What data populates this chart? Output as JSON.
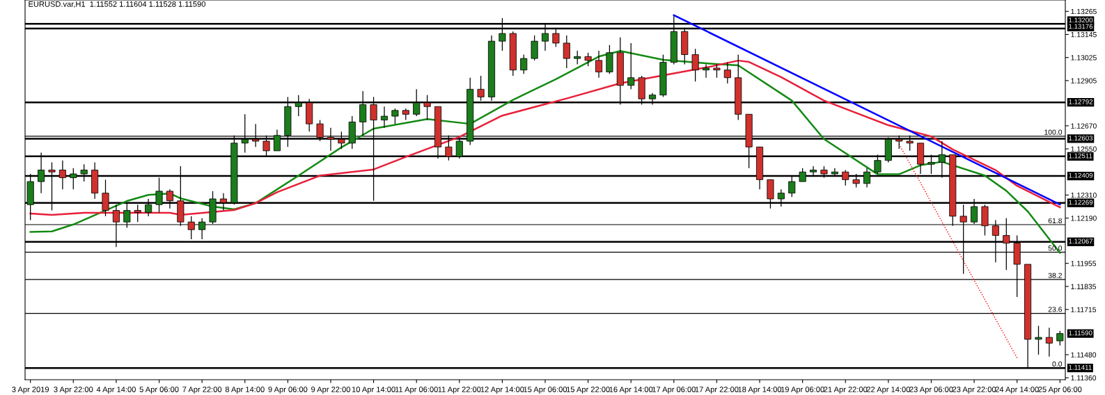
{
  "chart_data": {
    "type": "candlestick",
    "title": "EURUSD.var,H1  1.11552 1.11604 1.11528 1.11590",
    "categories": [
      "3 Apr 2019",
      null,
      null,
      null,
      "3 Apr 22:00",
      null,
      null,
      null,
      "4 Apr 14:00",
      null,
      null,
      null,
      "5 Apr 06:00",
      null,
      null,
      null,
      "7 Apr 22:00",
      null,
      null,
      null,
      "8 Apr 14:00",
      null,
      null,
      null,
      "9 Apr 06:00",
      null,
      null,
      null,
      "9 Apr 22:00",
      null,
      null,
      null,
      "10 Apr 14:00",
      null,
      null,
      null,
      "11 Apr 06:00",
      null,
      null,
      null,
      "11 Apr 22:00",
      null,
      null,
      null,
      "12 Apr 14:00",
      null,
      null,
      null,
      "15 Apr 06:00",
      null,
      null,
      null,
      "15 Apr 22:00",
      null,
      null,
      null,
      "16 Apr 14:00",
      null,
      null,
      null,
      "17 Apr 06:00",
      null,
      null,
      null,
      "17 Apr 22:00",
      null,
      null,
      null,
      "18 Apr 14:00",
      null,
      null,
      null,
      "19 Apr 06:00",
      null,
      null,
      null,
      "21 Apr 22:00",
      null,
      null,
      null,
      "22 Apr 14:00",
      null,
      null,
      null,
      "23 Apr 06:00",
      null,
      null,
      null,
      "23 Apr 22:00",
      null,
      null,
      null,
      "24 Apr 14:00",
      null,
      null,
      null,
      "25 Apr 06:00"
    ],
    "ohlc": [
      [
        1.1226,
        1.1242,
        1.1218,
        1.1238
      ],
      [
        1.1238,
        1.1253,
        1.1232,
        1.1244
      ],
      [
        1.1244,
        1.1248,
        1.1223,
        1.1243
      ],
      [
        1.1244,
        1.1249,
        1.1234,
        1.124
      ],
      [
        1.124,
        1.1245,
        1.1234,
        1.1242
      ],
      [
        1.1242,
        1.1247,
        1.1238,
        1.1244
      ],
      [
        1.1244,
        1.1248,
        1.1229,
        1.1232
      ],
      [
        1.1232,
        1.1239,
        1.122,
        1.1223
      ],
      [
        1.1223,
        1.1226,
        1.1204,
        1.1217
      ],
      [
        1.1217,
        1.1227,
        1.1214,
        1.1223
      ],
      [
        1.1223,
        1.1226,
        1.1217,
        1.1222
      ],
      [
        1.1222,
        1.1229,
        1.122,
        1.1226
      ],
      [
        1.1226,
        1.124,
        1.1222,
        1.1233
      ],
      [
        1.1233,
        1.1234,
        1.1224,
        1.1228
      ],
      [
        1.1228,
        1.1246,
        1.1215,
        1.1217
      ],
      [
        1.1217,
        1.122,
        1.1208,
        1.1213
      ],
      [
        1.1213,
        1.1219,
        1.1208,
        1.1217
      ],
      [
        1.1217,
        1.1233,
        1.1216,
        1.1229
      ],
      [
        1.1229,
        1.1232,
        1.1223,
        1.1227
      ],
      [
        1.1227,
        1.1262,
        1.1226,
        1.1258
      ],
      [
        1.1258,
        1.1273,
        1.1253,
        1.126
      ],
      [
        1.126,
        1.1268,
        1.1256,
        1.1259
      ],
      [
        1.1259,
        1.1262,
        1.1251,
        1.1254
      ],
      [
        1.1254,
        1.1265,
        1.1254,
        1.1262
      ],
      [
        1.1262,
        1.1282,
        1.1256,
        1.1277
      ],
      [
        1.1277,
        1.1283,
        1.1272,
        1.1279
      ],
      [
        1.1279,
        1.1281,
        1.1264,
        1.1268
      ],
      [
        1.1268,
        1.127,
        1.1259,
        1.1261
      ],
      [
        1.1261,
        1.1266,
        1.1254,
        1.126
      ],
      [
        1.126,
        1.1264,
        1.1255,
        1.1258
      ],
      [
        1.1258,
        1.1272,
        1.1255,
        1.1269
      ],
      [
        1.1269,
        1.1285,
        1.1262,
        1.1278
      ],
      [
        1.1278,
        1.1282,
        1.1228,
        1.127
      ],
      [
        1.127,
        1.1277,
        1.1266,
        1.1272
      ],
      [
        1.1272,
        1.1276,
        1.1268,
        1.1275
      ],
      [
        1.1275,
        1.1276,
        1.127,
        1.1273
      ],
      [
        1.1273,
        1.1286,
        1.1272,
        1.1279
      ],
      [
        1.1279,
        1.1283,
        1.127,
        1.1277
      ],
      [
        1.1277,
        1.1277,
        1.125,
        1.1256
      ],
      [
        1.1256,
        1.1262,
        1.1249,
        1.1251
      ],
      [
        1.1251,
        1.126,
        1.125,
        1.1259
      ],
      [
        1.1259,
        1.1292,
        1.1257,
        1.1286
      ],
      [
        1.1286,
        1.1293,
        1.128,
        1.1282
      ],
      [
        1.1282,
        1.1314,
        1.128,
        1.1311
      ],
      [
        1.1311,
        1.1323,
        1.1306,
        1.1315
      ],
      [
        1.1315,
        1.1316,
        1.1293,
        1.1296
      ],
      [
        1.1296,
        1.1304,
        1.1294,
        1.1302
      ],
      [
        1.1302,
        1.1314,
        1.1301,
        1.1311
      ],
      [
        1.1311,
        1.132,
        1.1306,
        1.1315
      ],
      [
        1.1315,
        1.1318,
        1.1308,
        1.131
      ],
      [
        1.131,
        1.1314,
        1.1297,
        1.1302
      ],
      [
        1.1302,
        1.1306,
        1.1299,
        1.1303
      ],
      [
        1.1303,
        1.1305,
        1.1298,
        1.1301
      ],
      [
        1.1301,
        1.1306,
        1.1292,
        1.1295
      ],
      [
        1.1295,
        1.1309,
        1.1294,
        1.1305
      ],
      [
        1.1305,
        1.1313,
        1.1278,
        1.1288
      ],
      [
        1.1288,
        1.131,
        1.1286,
        1.1292
      ],
      [
        1.1292,
        1.1293,
        1.1278,
        1.1281
      ],
      [
        1.1281,
        1.1284,
        1.1278,
        1.1283
      ],
      [
        1.1283,
        1.1304,
        1.1282,
        1.13
      ],
      [
        1.13,
        1.1324,
        1.1299,
        1.1316
      ],
      [
        1.1316,
        1.1318,
        1.1299,
        1.1304
      ],
      [
        1.1304,
        1.1307,
        1.129,
        1.1296
      ],
      [
        1.1296,
        1.1299,
        1.1292,
        1.1297
      ],
      [
        1.1297,
        1.1299,
        1.1292,
        1.1296
      ],
      [
        1.1296,
        1.13,
        1.1289,
        1.1292
      ],
      [
        1.1292,
        1.1304,
        1.127,
        1.1273
      ],
      [
        1.1273,
        1.1273,
        1.1245,
        1.1256
      ],
      [
        1.1256,
        1.1256,
        1.1234,
        1.1239
      ],
      [
        1.1239,
        1.1239,
        1.1224,
        1.1229
      ],
      [
        1.1229,
        1.1234,
        1.1225,
        1.1232
      ],
      [
        1.1232,
        1.1241,
        1.123,
        1.1238
      ],
      [
        1.1238,
        1.1245,
        1.1238,
        1.1243
      ],
      [
        1.1243,
        1.1246,
        1.1241,
        1.1244
      ],
      [
        1.1244,
        1.1246,
        1.124,
        1.1242
      ],
      [
        1.1242,
        1.1245,
        1.1241,
        1.1243
      ],
      [
        1.1243,
        1.1244,
        1.1236,
        1.1239
      ],
      [
        1.1239,
        1.1242,
        1.1235,
        1.1237
      ],
      [
        1.1237,
        1.1245,
        1.1235,
        1.1243
      ],
      [
        1.1243,
        1.1252,
        1.1242,
        1.1249
      ],
      [
        1.1249,
        1.1261,
        1.1248,
        1.126
      ],
      [
        1.126,
        1.1262,
        1.1255,
        1.1259
      ],
      [
        1.1259,
        1.1262,
        1.1254,
        1.1258
      ],
      [
        1.1258,
        1.1258,
        1.1242,
        1.1247
      ],
      [
        1.1247,
        1.1252,
        1.1242,
        1.1248
      ],
      [
        1.1248,
        1.1259,
        1.124,
        1.1252
      ],
      [
        1.1252,
        1.1252,
        1.1215,
        1.122
      ],
      [
        1.122,
        1.1226,
        1.119,
        1.1217
      ],
      [
        1.1217,
        1.1229,
        1.1216,
        1.1225
      ],
      [
        1.1225,
        1.1226,
        1.121,
        1.1215
      ],
      [
        1.1215,
        1.1218,
        1.1196,
        1.121
      ],
      [
        1.121,
        1.1219,
        1.1192,
        1.1206
      ],
      [
        1.1206,
        1.121,
        1.1178,
        1.1195
      ],
      [
        1.1195,
        1.1195,
        1.11411,
        1.1156
      ],
      [
        1.1156,
        1.1163,
        1.1148,
        1.1157
      ],
      [
        1.1157,
        1.1162,
        1.1147,
        1.1154
      ],
      [
        1.11552,
        1.11604,
        1.11528,
        1.1159
      ]
    ],
    "colors": [
      "#1b7d1b",
      "#1b7d1b",
      "#d0312d",
      "#d0312d",
      "#1b7d1b",
      "#1b7d1b",
      "#d0312d",
      "#d0312d",
      "#d0312d",
      "#1b7d1b",
      "#d0312d",
      "#1b7d1b",
      "#1b7d1b",
      "#d0312d",
      "#d0312d",
      "#d0312d",
      "#1b7d1b",
      "#1b7d1b",
      "#d0312d",
      "#1b7d1b",
      "#1b7d1b",
      "#d0312d",
      "#d0312d",
      "#1b7d1b",
      "#1b7d1b",
      "#1b7d1b",
      "#d0312d",
      "#d0312d",
      "#d0312d",
      "#d0312d",
      "#1b7d1b",
      "#1b7d1b",
      "#d0312d",
      "#1b7d1b",
      "#1b7d1b",
      "#d0312d",
      "#1b7d1b",
      "#d0312d",
      "#d0312d",
      "#d0312d",
      "#1b7d1b",
      "#1b7d1b",
      "#d0312d",
      "#1b7d1b",
      "#1b7d1b",
      "#d0312d",
      "#1b7d1b",
      "#1b7d1b",
      "#1b7d1b",
      "#d0312d",
      "#d0312d",
      "#1b7d1b",
      "#d0312d",
      "#d0312d",
      "#1b7d1b",
      "#d0312d",
      "#1b7d1b",
      "#d0312d",
      "#1b7d1b",
      "#1b7d1b",
      "#1b7d1b",
      "#d0312d",
      "#d0312d",
      "#1b7d1b",
      "#d0312d",
      "#d0312d",
      "#d0312d",
      "#d0312d",
      "#d0312d",
      "#d0312d",
      "#1b7d1b",
      "#1b7d1b",
      "#1b7d1b",
      "#1b7d1b",
      "#d0312d",
      "#1b7d1b",
      "#d0312d",
      "#d0312d",
      "#1b7d1b",
      "#1b7d1b",
      "#1b7d1b",
      "#d0312d",
      "#d0312d",
      "#d0312d",
      "#1b7d1b",
      "#1b7d1b",
      "#d0312d",
      "#d0312d",
      "#1b7d1b",
      "#d0312d",
      "#d0312d",
      "#d0312d",
      "#d0312d",
      "#d0312d",
      "#1b7d1b",
      "#d0312d",
      "#1b7d1b"
    ],
    "series": [
      {
        "type": "line",
        "color": "#138a13",
        "values": [
          1.12118,
          null,
          1.12121,
          null,
          1.12157,
          null,
          null,
          null,
          null,
          1.12279,
          null,
          1.12311,
          null,
          1.12318,
          1.12293,
          null,
          null,
          1.1225,
          null,
          1.12236,
          null,
          1.12268,
          null,
          null,
          null,
          1.12411,
          null,
          null,
          null,
          1.12558,
          null,
          null,
          1.12655,
          null,
          null,
          null,
          null,
          1.12705,
          null,
          null,
          null,
          1.1268,
          null,
          null,
          null,
          1.12805,
          null,
          null,
          null,
          1.12912,
          null,
          null,
          null,
          1.1303,
          null,
          1.13059,
          null,
          null,
          null,
          1.13013,
          null,
          null,
          null,
          1.12995,
          null,
          null,
          1.12984,
          null,
          null,
          null,
          null,
          1.12801,
          null,
          null,
          1.12601,
          null,
          null,
          null,
          null,
          1.12418,
          null,
          1.12418,
          null,
          1.12465,
          null,
          1.12483,
          null,
          null,
          null,
          1.12411,
          null,
          1.12332,
          null,
          1.12225,
          null,
          null,
          1.1201
        ]
      },
      {
        "type": "line",
        "color": "#e8203a",
        "values": [
          1.12214,
          null,
          1.12207,
          null,
          null,
          1.12218,
          null,
          null,
          null,
          null,
          null,
          null,
          null,
          1.12218,
          1.12207,
          null,
          null,
          null,
          null,
          1.12232,
          null,
          1.12268,
          null,
          1.12325,
          null,
          null,
          null,
          1.12411,
          null,
          null,
          null,
          null,
          1.12443,
          null,
          null,
          1.12508,
          null,
          null,
          null,
          null,
          1.12612,
          null,
          null,
          null,
          1.12723,
          null,
          null,
          null,
          null,
          null,
          1.12812,
          null,
          null,
          null,
          null,
          1.12891,
          null,
          null,
          null,
          null,
          null,
          null,
          null,
          1.12973,
          null,
          null,
          1.13009,
          1.13002,
          null,
          null,
          1.12923,
          null,
          null,
          null,
          1.12801,
          null,
          null,
          null,
          null,
          null,
          1.12673,
          null,
          null,
          null,
          1.12615,
          null,
          1.12547,
          null,
          null,
          null,
          1.1244,
          null,
          1.12358,
          null,
          null,
          null,
          1.12246
        ]
      },
      {
        "type": "line",
        "color": "#0000ff",
        "values": [
          null,
          null,
          null,
          null,
          null,
          null,
          null,
          null,
          null,
          null,
          null,
          null,
          null,
          null,
          null,
          null,
          null,
          null,
          null,
          null,
          null,
          null,
          null,
          null,
          null,
          null,
          null,
          null,
          null,
          null,
          null,
          null,
          null,
          null,
          null,
          null,
          null,
          null,
          null,
          null,
          null,
          null,
          null,
          null,
          null,
          null,
          null,
          null,
          null,
          null,
          null,
          null,
          null,
          null,
          null,
          null,
          null,
          null,
          null,
          null,
          1.13245,
          null,
          null,
          null,
          null,
          null,
          null,
          null,
          null,
          null,
          null,
          null,
          null,
          null,
          null,
          null,
          null,
          null,
          null,
          null,
          null,
          null,
          null,
          null,
          null,
          null,
          null,
          null,
          null,
          null,
          null,
          null,
          null,
          null,
          null,
          null,
          1.12261
        ]
      },
      {
        "type": "line",
        "color": "#ff0000",
        "line_style": "dotted",
        "values": [
          null,
          null,
          null,
          null,
          null,
          null,
          null,
          null,
          null,
          null,
          null,
          null,
          null,
          null,
          null,
          null,
          null,
          null,
          null,
          null,
          null,
          null,
          null,
          null,
          null,
          null,
          null,
          null,
          null,
          null,
          null,
          null,
          null,
          null,
          null,
          null,
          null,
          null,
          null,
          null,
          null,
          null,
          null,
          null,
          null,
          null,
          null,
          null,
          null,
          null,
          null,
          null,
          null,
          null,
          null,
          null,
          null,
          null,
          null,
          null,
          null,
          null,
          null,
          null,
          null,
          null,
          null,
          null,
          null,
          null,
          null,
          null,
          null,
          null,
          null,
          null,
          null,
          null,
          null,
          null,
          null,
          1.12575,
          null,
          null,
          null,
          null,
          null,
          null,
          null,
          null,
          null,
          null,
          1.11463,
          null,
          null,
          null,
          null
        ]
      }
    ],
    "ylim": [
      1.1135,
      1.13324
    ],
    "yticks": [
      1.13265,
      1.13145,
      1.13025,
      1.12905,
      {
        "value": 1.1267,
        "label": "1.12670"
      },
      {
        "value": 1.1255,
        "label": "1.12550"
      },
      {
        "value": 1.1231,
        "label": "1.12310"
      },
      {
        "value": 1.1219,
        "label": "1.12190"
      },
      1.11955,
      1.11835,
      1.11715,
      {
        "value": 1.1148,
        "label": "1.11480"
      },
      {
        "value": 1.1136,
        "label": "1.11360"
      }
    ],
    "ref_lines": [
      {
        "axis": "y",
        "value": 1.132,
        "label": "1.13200"
      },
      {
        "axis": "y",
        "value": 1.13176,
        "label": "1.13176"
      },
      {
        "axis": "y",
        "value": 1.12792,
        "label": "1.12792"
      },
      {
        "axis": "y",
        "value": 1.12603,
        "label": "1.12603"
      },
      {
        "axis": "y",
        "value": 1.12511,
        "label": "1.12511"
      },
      {
        "axis": "y",
        "value": 1.12409,
        "label": "1.12409"
      },
      {
        "axis": "y",
        "value": 1.12269,
        "label": "1.12269"
      },
      {
        "axis": "y",
        "value": 1.12067,
        "label": "1.12067"
      },
      {
        "axis": "y",
        "value": 1.11411,
        "label": "1.11411"
      },
      {
        "axis": "y",
        "value": 1.12616,
        "color": "#000000"
      },
      {
        "axis": "y",
        "value": 1.12156,
        "color": "#000000"
      },
      {
        "axis": "y",
        "value": 1.12013,
        "color": "#000000"
      },
      {
        "axis": "y",
        "value": 1.11871,
        "color": "#000000"
      },
      {
        "axis": "y",
        "value": 1.11695,
        "color": "#000000"
      }
    ],
    "annotations": [
      "1.11590",
      {
        "text": "100.0",
        "y": 1.12616
      },
      {
        "text": "61.8",
        "y": 1.12156
      },
      {
        "text": "50.0",
        "y": 1.12013
      },
      {
        "text": "38.2",
        "y": 1.11871
      },
      {
        "text": "23.6",
        "y": 1.11695
      },
      {
        "text": "0.0",
        "y": 1.11411
      }
    ]
  }
}
